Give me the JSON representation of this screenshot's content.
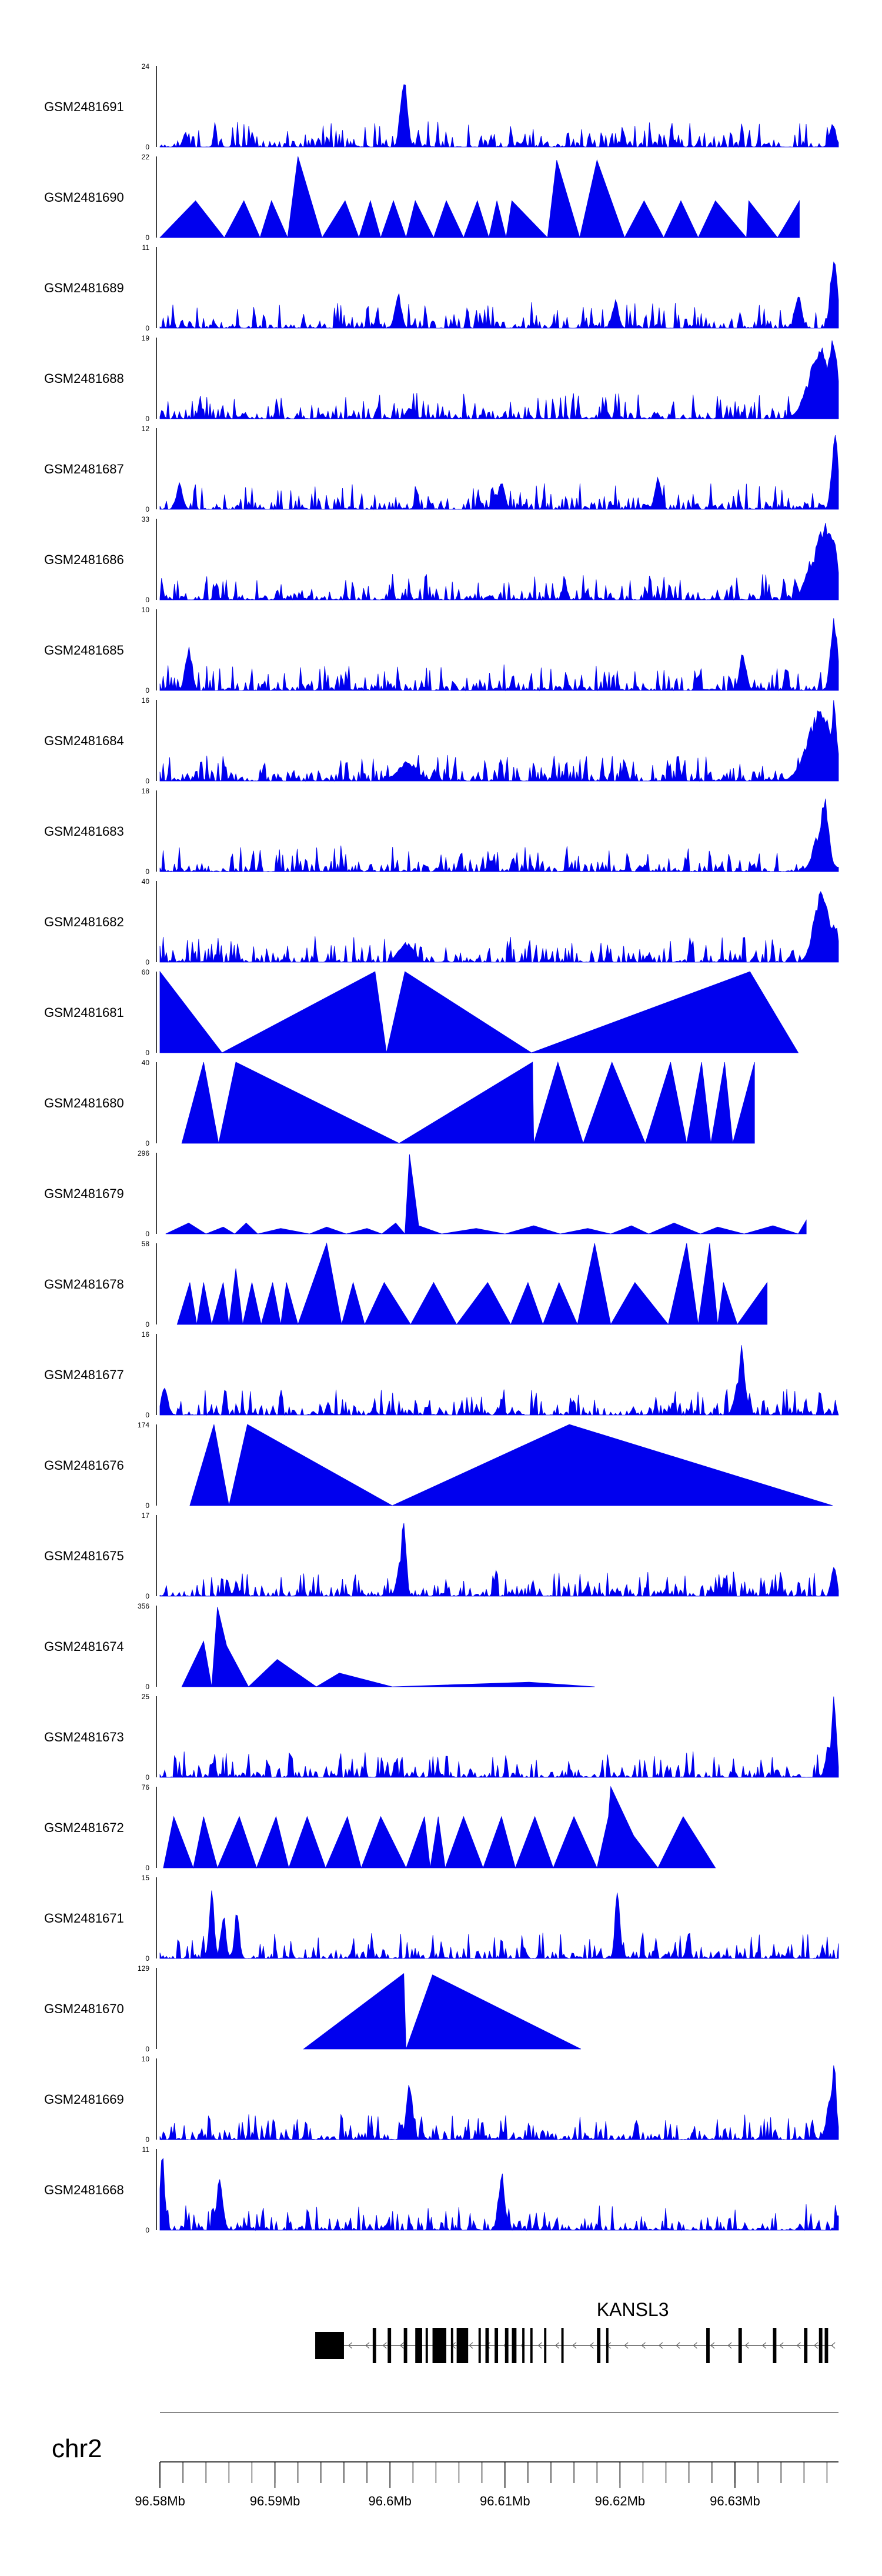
{
  "chart_data": {
    "type": "area",
    "title": "",
    "chromosome": "chr2",
    "gene": "KANSL3",
    "colors": {
      "signal": "#0000ee",
      "axis": "#000000",
      "gene": "#000000",
      "ideogram": "#888888"
    },
    "x_range": [
      96.58,
      96.639
    ],
    "x_ticks": [
      {
        "value": 96.58,
        "label": "96.58Mb"
      },
      {
        "value": 96.59,
        "label": "96.59Mb"
      },
      {
        "value": 96.6,
        "label": "96.6Mb"
      },
      {
        "value": 96.61,
        "label": "96.61Mb"
      },
      {
        "value": 96.62,
        "label": "96.62Mb"
      },
      {
        "value": 96.63,
        "label": "96.63Mb"
      }
    ],
    "minor_tick_step": 0.002,
    "gene_model": {
      "strand": "-",
      "start": 96.5935,
      "end": 96.6385,
      "exons": [
        [
          96.5935,
          96.596
        ],
        [
          96.5985,
          96.5988
        ],
        [
          96.5998,
          96.6001
        ],
        [
          96.6012,
          96.6015
        ],
        [
          96.6022,
          96.6028
        ],
        [
          96.6031,
          96.6033
        ],
        [
          96.6037,
          96.6049
        ],
        [
          96.6053,
          96.6055
        ],
        [
          96.6058,
          96.6068
        ],
        [
          96.6077,
          96.6079
        ],
        [
          96.6083,
          96.6086
        ],
        [
          96.6091,
          96.6094
        ],
        [
          96.61,
          96.6103
        ],
        [
          96.6106,
          96.611
        ],
        [
          96.6115,
          96.6117
        ],
        [
          96.6122,
          96.6124
        ],
        [
          96.6134,
          96.6136
        ],
        [
          96.6149,
          96.6151
        ],
        [
          96.618,
          96.6183
        ],
        [
          96.6188,
          96.619
        ],
        [
          96.6275,
          96.6278
        ],
        [
          96.6303,
          96.6306
        ],
        [
          96.6333,
          96.6336
        ],
        [
          96.636,
          96.6363
        ],
        [
          96.6373,
          96.6376
        ],
        [
          96.6378,
          96.6381
        ]
      ]
    },
    "tracks": [
      {
        "name": "GSM2481691",
        "ymax": 24,
        "ymin": 0,
        "profile": "dense",
        "peaks": [
          [
            96.6012,
            24,
            0.0004
          ],
          [
            96.601,
            14,
            0.0003
          ],
          [
            96.6385,
            7,
            0.0004
          ],
          [
            96.5822,
            5,
            0.0003
          ]
        ]
      },
      {
        "name": "GSM2481690",
        "ymax": 22,
        "ymin": 0,
        "profile": "sparse",
        "x": [
          96.58,
          96.5831,
          96.5856,
          96.5873,
          96.5887,
          96.5897,
          96.5911,
          96.592,
          96.5941,
          96.5961,
          96.5973,
          96.5983,
          96.5992,
          96.6003,
          96.6014,
          96.6022,
          96.6038,
          96.6049,
          96.6064,
          96.6076,
          96.6086,
          96.6093,
          96.6101,
          96.6106,
          96.6137,
          96.6145,
          96.6165,
          96.618,
          96.6204,
          96.6221,
          96.6238,
          96.6253,
          96.6268,
          96.6283,
          96.631,
          96.6312,
          96.6337,
          96.6356
        ],
        "y": [
          0,
          10,
          0,
          10,
          0,
          10,
          0,
          22,
          0,
          10,
          0,
          10,
          0,
          10,
          0,
          10,
          0,
          10,
          0,
          10,
          0,
          10,
          0,
          10,
          0,
          21,
          0,
          21,
          0,
          10,
          0,
          10,
          0,
          10,
          0,
          10,
          0,
          10
        ]
      },
      {
        "name": "GSM2481689",
        "ymax": 11,
        "ymin": 0,
        "profile": "dense",
        "peaks": [
          [
            96.6386,
            11,
            0.0004
          ],
          [
            96.6355,
            5,
            0.0004
          ],
          [
            96.6007,
            5,
            0.0004
          ],
          [
            96.6196,
            4,
            0.0004
          ]
        ]
      },
      {
        "name": "GSM2481688",
        "ymax": 19,
        "ymin": 0,
        "profile": "dense",
        "peaks": [
          [
            96.6375,
            17,
            0.0015
          ],
          [
            96.6385,
            19,
            0.0006
          ],
          [
            96.6018,
            3,
            0.0005
          ]
        ]
      },
      {
        "name": "GSM2481687",
        "ymax": 12,
        "ymin": 0,
        "profile": "dense",
        "peaks": [
          [
            96.6387,
            12,
            0.0004
          ],
          [
            96.6233,
            5,
            0.0004
          ],
          [
            96.5817,
            4,
            0.0004
          ],
          [
            96.6097,
            5,
            0.0004
          ]
        ]
      },
      {
        "name": "GSM2481686",
        "ymax": 33,
        "ymin": 0,
        "profile": "dense",
        "peaks": [
          [
            96.6378,
            33,
            0.0012
          ],
          [
            96.6368,
            18,
            0.0009
          ],
          [
            96.6386,
            25,
            0.0005
          ]
        ]
      },
      {
        "name": "GSM2481685",
        "ymax": 10,
        "ymin": 0,
        "profile": "dense",
        "peaks": [
          [
            96.6386,
            10,
            0.0004
          ],
          [
            96.5825,
            6,
            0.0004
          ],
          [
            96.6307,
            5,
            0.0004
          ]
        ]
      },
      {
        "name": "GSM2481684",
        "ymax": 16,
        "ymin": 0,
        "profile": "dense",
        "peaks": [
          [
            96.6375,
            15,
            0.0016
          ],
          [
            96.6015,
            4,
            0.0012
          ],
          [
            96.6386,
            16,
            0.0004
          ]
        ]
      },
      {
        "name": "GSM2481683",
        "ymax": 18,
        "ymin": 0,
        "profile": "dense",
        "peaks": [
          [
            96.6378,
            17,
            0.0005
          ],
          [
            96.6375,
            10,
            0.0009
          ],
          [
            96.6088,
            3,
            0.0004
          ]
        ]
      },
      {
        "name": "GSM2481682",
        "ymax": 40,
        "ymin": 0,
        "profile": "dense",
        "peaks": [
          [
            96.6375,
            38,
            0.0009
          ],
          [
            96.6385,
            22,
            0.0007
          ],
          [
            96.6014,
            10,
            0.0009
          ]
        ]
      },
      {
        "name": "GSM2481681",
        "ymax": 60,
        "ymin": 0,
        "profile": "sparse",
        "x": [
          96.58,
          96.58,
          96.5854,
          96.5987,
          96.5997,
          96.6013,
          96.6123,
          96.6313,
          96.6355
        ],
        "y": [
          0,
          60,
          0,
          60,
          0,
          60,
          0,
          60,
          0
        ]
      },
      {
        "name": "GSM2481680",
        "ymax": 40,
        "ymin": 0,
        "profile": "sparse",
        "x": [
          96.5819,
          96.5838,
          96.5851,
          96.5866,
          96.6008,
          96.6124,
          96.6125,
          96.6146,
          96.6168,
          96.6193,
          96.6222,
          96.6244,
          96.6258,
          96.6271,
          96.6279,
          96.6291,
          96.6298,
          96.6317
        ],
        "y": [
          0,
          40,
          0,
          40,
          0,
          40,
          0,
          40,
          0,
          40,
          0,
          40,
          0,
          40,
          0,
          40,
          0,
          40
        ]
      },
      {
        "name": "GSM2481679",
        "ymax": 296,
        "ymin": 0,
        "profile": "sparse",
        "x": [
          96.5805,
          96.5825,
          96.584,
          96.5855,
          96.5865,
          96.5875,
          96.5885,
          96.5905,
          96.593,
          96.5945,
          96.5962,
          96.598,
          96.5993,
          96.6005,
          96.6013,
          96.6017,
          96.6025,
          96.6045,
          96.6075,
          96.61,
          96.6125,
          96.6148,
          96.6172,
          96.6192,
          96.621,
          96.6225,
          96.6247,
          96.627,
          96.6285,
          96.6308,
          96.6333,
          96.6355,
          96.6362
        ],
        "y": [
          0,
          40,
          0,
          25,
          0,
          40,
          0,
          20,
          0,
          25,
          0,
          20,
          0,
          40,
          0,
          290,
          30,
          0,
          20,
          0,
          30,
          0,
          20,
          0,
          30,
          0,
          40,
          0,
          25,
          0,
          30,
          0,
          50
        ]
      },
      {
        "name": "GSM2481678",
        "ymax": 58,
        "ymin": 0,
        "profile": "sparse",
        "x": [
          96.5815,
          96.5826,
          96.5832,
          96.5838,
          96.5845,
          96.5855,
          96.586,
          96.5866,
          96.5872,
          96.588,
          96.5888,
          96.5898,
          96.5905,
          96.591,
          96.592,
          96.5945,
          96.5958,
          96.5968,
          96.5978,
          96.5995,
          96.6018,
          96.6038,
          96.6058,
          96.6085,
          96.6105,
          96.612,
          96.6133,
          96.6147,
          96.6163,
          96.6178,
          96.6192,
          96.6213,
          96.6242,
          96.6258,
          96.6268,
          96.6278,
          96.6285,
          96.629,
          96.6302,
          96.6328
        ],
        "y": [
          0,
          30,
          0,
          30,
          0,
          30,
          0,
          40,
          0,
          30,
          0,
          30,
          0,
          30,
          0,
          58,
          0,
          30,
          0,
          30,
          0,
          30,
          0,
          30,
          0,
          30,
          0,
          30,
          0,
          58,
          0,
          30,
          0,
          58,
          0,
          58,
          0,
          30,
          0,
          30
        ]
      },
      {
        "name": "GSM2481677",
        "ymax": 16,
        "ymin": 0,
        "profile": "dense",
        "peaks": [
          [
            96.6306,
            15,
            0.0003
          ],
          [
            96.6305,
            9,
            0.0006
          ],
          [
            96.5804,
            6,
            0.0004
          ]
        ]
      },
      {
        "name": "GSM2481676",
        "ymax": 174,
        "ymin": 0,
        "profile": "sparse",
        "x": [
          96.5826,
          96.5847,
          96.586,
          96.5876,
          96.6002,
          96.6156,
          96.6385
        ],
        "y": [
          0,
          174,
          0,
          174,
          0,
          174,
          0
        ]
      },
      {
        "name": "GSM2481675",
        "ymax": 17,
        "ymin": 0,
        "profile": "dense",
        "peaks": [
          [
            96.6012,
            17,
            0.0003
          ],
          [
            96.6009,
            8,
            0.0004
          ],
          [
            96.6386,
            8,
            0.0003
          ]
        ]
      },
      {
        "name": "GSM2481674",
        "ymax": 356,
        "ymin": 0,
        "profile": "sparse",
        "x": [
          96.5819,
          96.5838,
          96.5845,
          96.585,
          96.5858,
          96.5877,
          96.5902,
          96.5936,
          96.5956,
          96.6002,
          96.6121,
          96.6178
        ],
        "y": [
          0,
          200,
          0,
          350,
          180,
          0,
          120,
          0,
          60,
          0,
          20,
          0
        ]
      },
      {
        "name": "GSM2481673",
        "ymax": 25,
        "ymin": 0,
        "profile": "dense",
        "peaks": [
          [
            96.6386,
            25,
            0.0003
          ],
          [
            96.6382,
            12,
            0.0004
          ]
        ]
      },
      {
        "name": "GSM2481672",
        "ymax": 76,
        "ymin": 0,
        "profile": "sparse",
        "x": [
          96.5803,
          96.5812,
          96.5829,
          96.5838,
          96.585,
          96.5869,
          96.5884,
          96.5901,
          96.5912,
          96.5928,
          96.5944,
          96.5963,
          96.5975,
          96.5992,
          96.6014,
          96.603,
          96.6035,
          96.6042,
          96.6048,
          96.6064,
          96.6081,
          96.6097,
          96.6109,
          96.6126,
          96.6142,
          96.616,
          96.618,
          96.619,
          96.6192,
          96.6212,
          96.6233,
          96.6255,
          96.6283
        ],
        "y": [
          0,
          48,
          0,
          48,
          0,
          48,
          0,
          48,
          0,
          48,
          0,
          48,
          0,
          48,
          0,
          48,
          0,
          48,
          0,
          48,
          0,
          48,
          0,
          48,
          0,
          48,
          0,
          48,
          76,
          30,
          0,
          48,
          0
        ]
      },
      {
        "name": "GSM2481671",
        "ymax": 15,
        "ymin": 0,
        "profile": "dense",
        "peaks": [
          [
            96.5845,
            14,
            0.0003
          ],
          [
            96.6198,
            14,
            0.0003
          ],
          [
            96.5855,
            9,
            0.0003
          ],
          [
            96.5867,
            9,
            0.0003
          ]
        ]
      },
      {
        "name": "GSM2481670",
        "ymax": 129,
        "ymin": 0,
        "profile": "sparse",
        "x": [
          96.5925,
          96.6012,
          96.6014,
          96.6037,
          96.6166
        ],
        "y": [
          0,
          120,
          0,
          118,
          0
        ]
      },
      {
        "name": "GSM2481669",
        "ymax": 10,
        "ymin": 0,
        "profile": "dense",
        "peaks": [
          [
            96.6386,
            10,
            0.0003
          ],
          [
            96.6017,
            7,
            0.0004
          ],
          [
            96.6383,
            5,
            0.0005
          ]
        ]
      },
      {
        "name": "GSM2481668",
        "ymax": 11,
        "ymin": 0,
        "profile": "dense",
        "peaks": [
          [
            96.5802,
            11,
            0.0003
          ],
          [
            96.5852,
            7,
            0.0004
          ],
          [
            96.6097,
            8,
            0.0004
          ]
        ]
      }
    ]
  }
}
